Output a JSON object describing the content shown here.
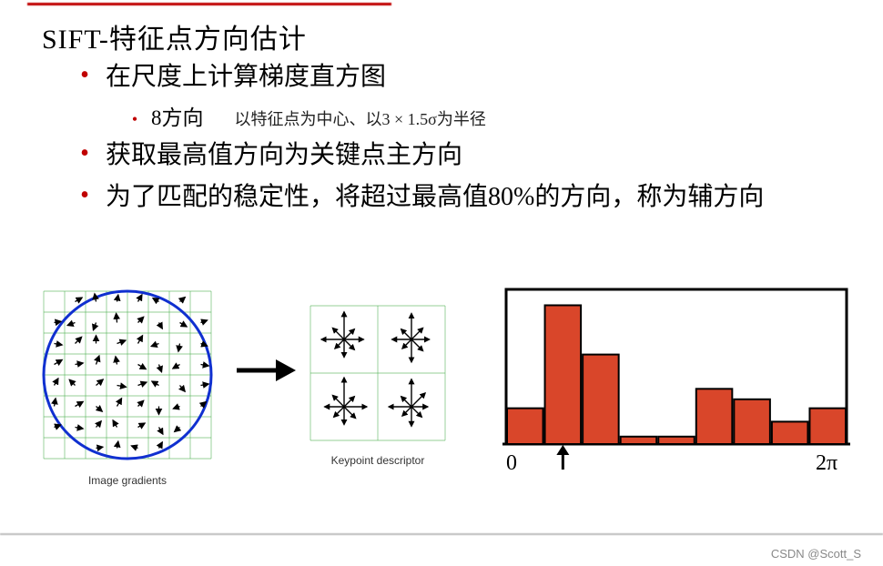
{
  "title": "SIFT-特征点方向估计",
  "bullets": {
    "b1": "在尺度上计算梯度直方图",
    "b1_sub_a": "8方向",
    "b1_sub_b": "以特征点为中心、以3 × 1.5σ为半径",
    "b2": "获取最高值方向为关键点主方向",
    "b3": "为了匹配的稳定性，将超过最高值80%的方向，称为辅方向"
  },
  "captions": {
    "fig1": "Image gradients",
    "fig2": "Keypoint descriptor"
  },
  "grid": {
    "cells": 8,
    "circle_color": "#1030d0",
    "grid_color": "#4caf50",
    "arrows": [
      [
        1,
        0,
        30,
        0.7
      ],
      [
        2,
        0,
        100,
        0.7
      ],
      [
        3,
        0,
        80,
        0.6
      ],
      [
        4,
        0,
        60,
        0.7
      ],
      [
        5,
        0,
        150,
        0.6
      ],
      [
        6,
        0,
        40,
        0.6
      ],
      [
        0,
        1,
        10,
        0.6
      ],
      [
        1,
        1,
        200,
        0.7
      ],
      [
        2,
        1,
        250,
        0.7
      ],
      [
        3,
        1,
        95,
        0.8
      ],
      [
        4,
        1,
        45,
        0.7
      ],
      [
        5,
        1,
        300,
        0.6
      ],
      [
        6,
        1,
        330,
        0.7
      ],
      [
        7,
        1,
        20,
        0.6
      ],
      [
        0,
        2,
        350,
        0.7
      ],
      [
        1,
        2,
        45,
        0.8
      ],
      [
        2,
        2,
        90,
        0.7
      ],
      [
        3,
        2,
        20,
        0.8
      ],
      [
        4,
        2,
        60,
        0.8
      ],
      [
        5,
        2,
        200,
        0.7
      ],
      [
        6,
        2,
        260,
        0.7
      ],
      [
        7,
        2,
        340,
        0.6
      ],
      [
        0,
        3,
        30,
        0.8
      ],
      [
        1,
        3,
        10,
        0.7
      ],
      [
        2,
        3,
        70,
        0.8
      ],
      [
        3,
        3,
        100,
        0.7
      ],
      [
        4,
        3,
        330,
        0.8
      ],
      [
        5,
        3,
        290,
        0.7
      ],
      [
        6,
        3,
        210,
        0.7
      ],
      [
        7,
        3,
        350,
        0.7
      ],
      [
        0,
        4,
        60,
        0.7
      ],
      [
        1,
        4,
        135,
        0.7
      ],
      [
        2,
        4,
        40,
        0.8
      ],
      [
        3,
        4,
        350,
        0.8
      ],
      [
        4,
        4,
        20,
        0.8
      ],
      [
        5,
        4,
        150,
        0.7
      ],
      [
        6,
        4,
        310,
        0.7
      ],
      [
        7,
        4,
        10,
        0.7
      ],
      [
        0,
        5,
        80,
        0.7
      ],
      [
        1,
        5,
        30,
        0.8
      ],
      [
        2,
        5,
        320,
        0.7
      ],
      [
        3,
        5,
        60,
        0.8
      ],
      [
        4,
        5,
        45,
        0.7
      ],
      [
        5,
        5,
        270,
        0.7
      ],
      [
        6,
        5,
        200,
        0.6
      ],
      [
        7,
        5,
        40,
        0.6
      ],
      [
        0,
        6,
        20,
        0.6
      ],
      [
        1,
        6,
        350,
        0.7
      ],
      [
        2,
        6,
        50,
        0.7
      ],
      [
        3,
        6,
        120,
        0.7
      ],
      [
        4,
        6,
        30,
        0.7
      ],
      [
        5,
        6,
        300,
        0.7
      ],
      [
        6,
        6,
        220,
        0.6
      ],
      [
        2,
        7,
        10,
        0.6
      ],
      [
        3,
        7,
        80,
        0.6
      ],
      [
        4,
        7,
        160,
        0.6
      ],
      [
        5,
        7,
        60,
        0.6
      ]
    ]
  },
  "descriptor": {
    "grid_color": "#4caf50",
    "mags": [
      [
        0.6,
        0.45,
        0.85,
        0.5,
        0.7,
        0.4,
        0.55,
        0.45
      ],
      [
        0.55,
        0.5,
        0.8,
        0.45,
        0.6,
        0.4,
        0.7,
        0.5
      ],
      [
        0.7,
        0.45,
        0.9,
        0.5,
        0.6,
        0.45,
        0.55,
        0.5
      ],
      [
        0.5,
        0.6,
        0.85,
        0.45,
        0.7,
        0.4,
        0.6,
        0.45
      ]
    ]
  },
  "histogram": {
    "bar_color": "#d9462a",
    "border_color": "#000000",
    "values": [
      0.24,
      0.93,
      0.6,
      0.05,
      0.05,
      0.37,
      0.3,
      0.15,
      0.24
    ],
    "xleft_label": "0",
    "xright_label": "2π",
    "arrow_index": 1.5
  },
  "watermark": "CSDN @Scott_S"
}
